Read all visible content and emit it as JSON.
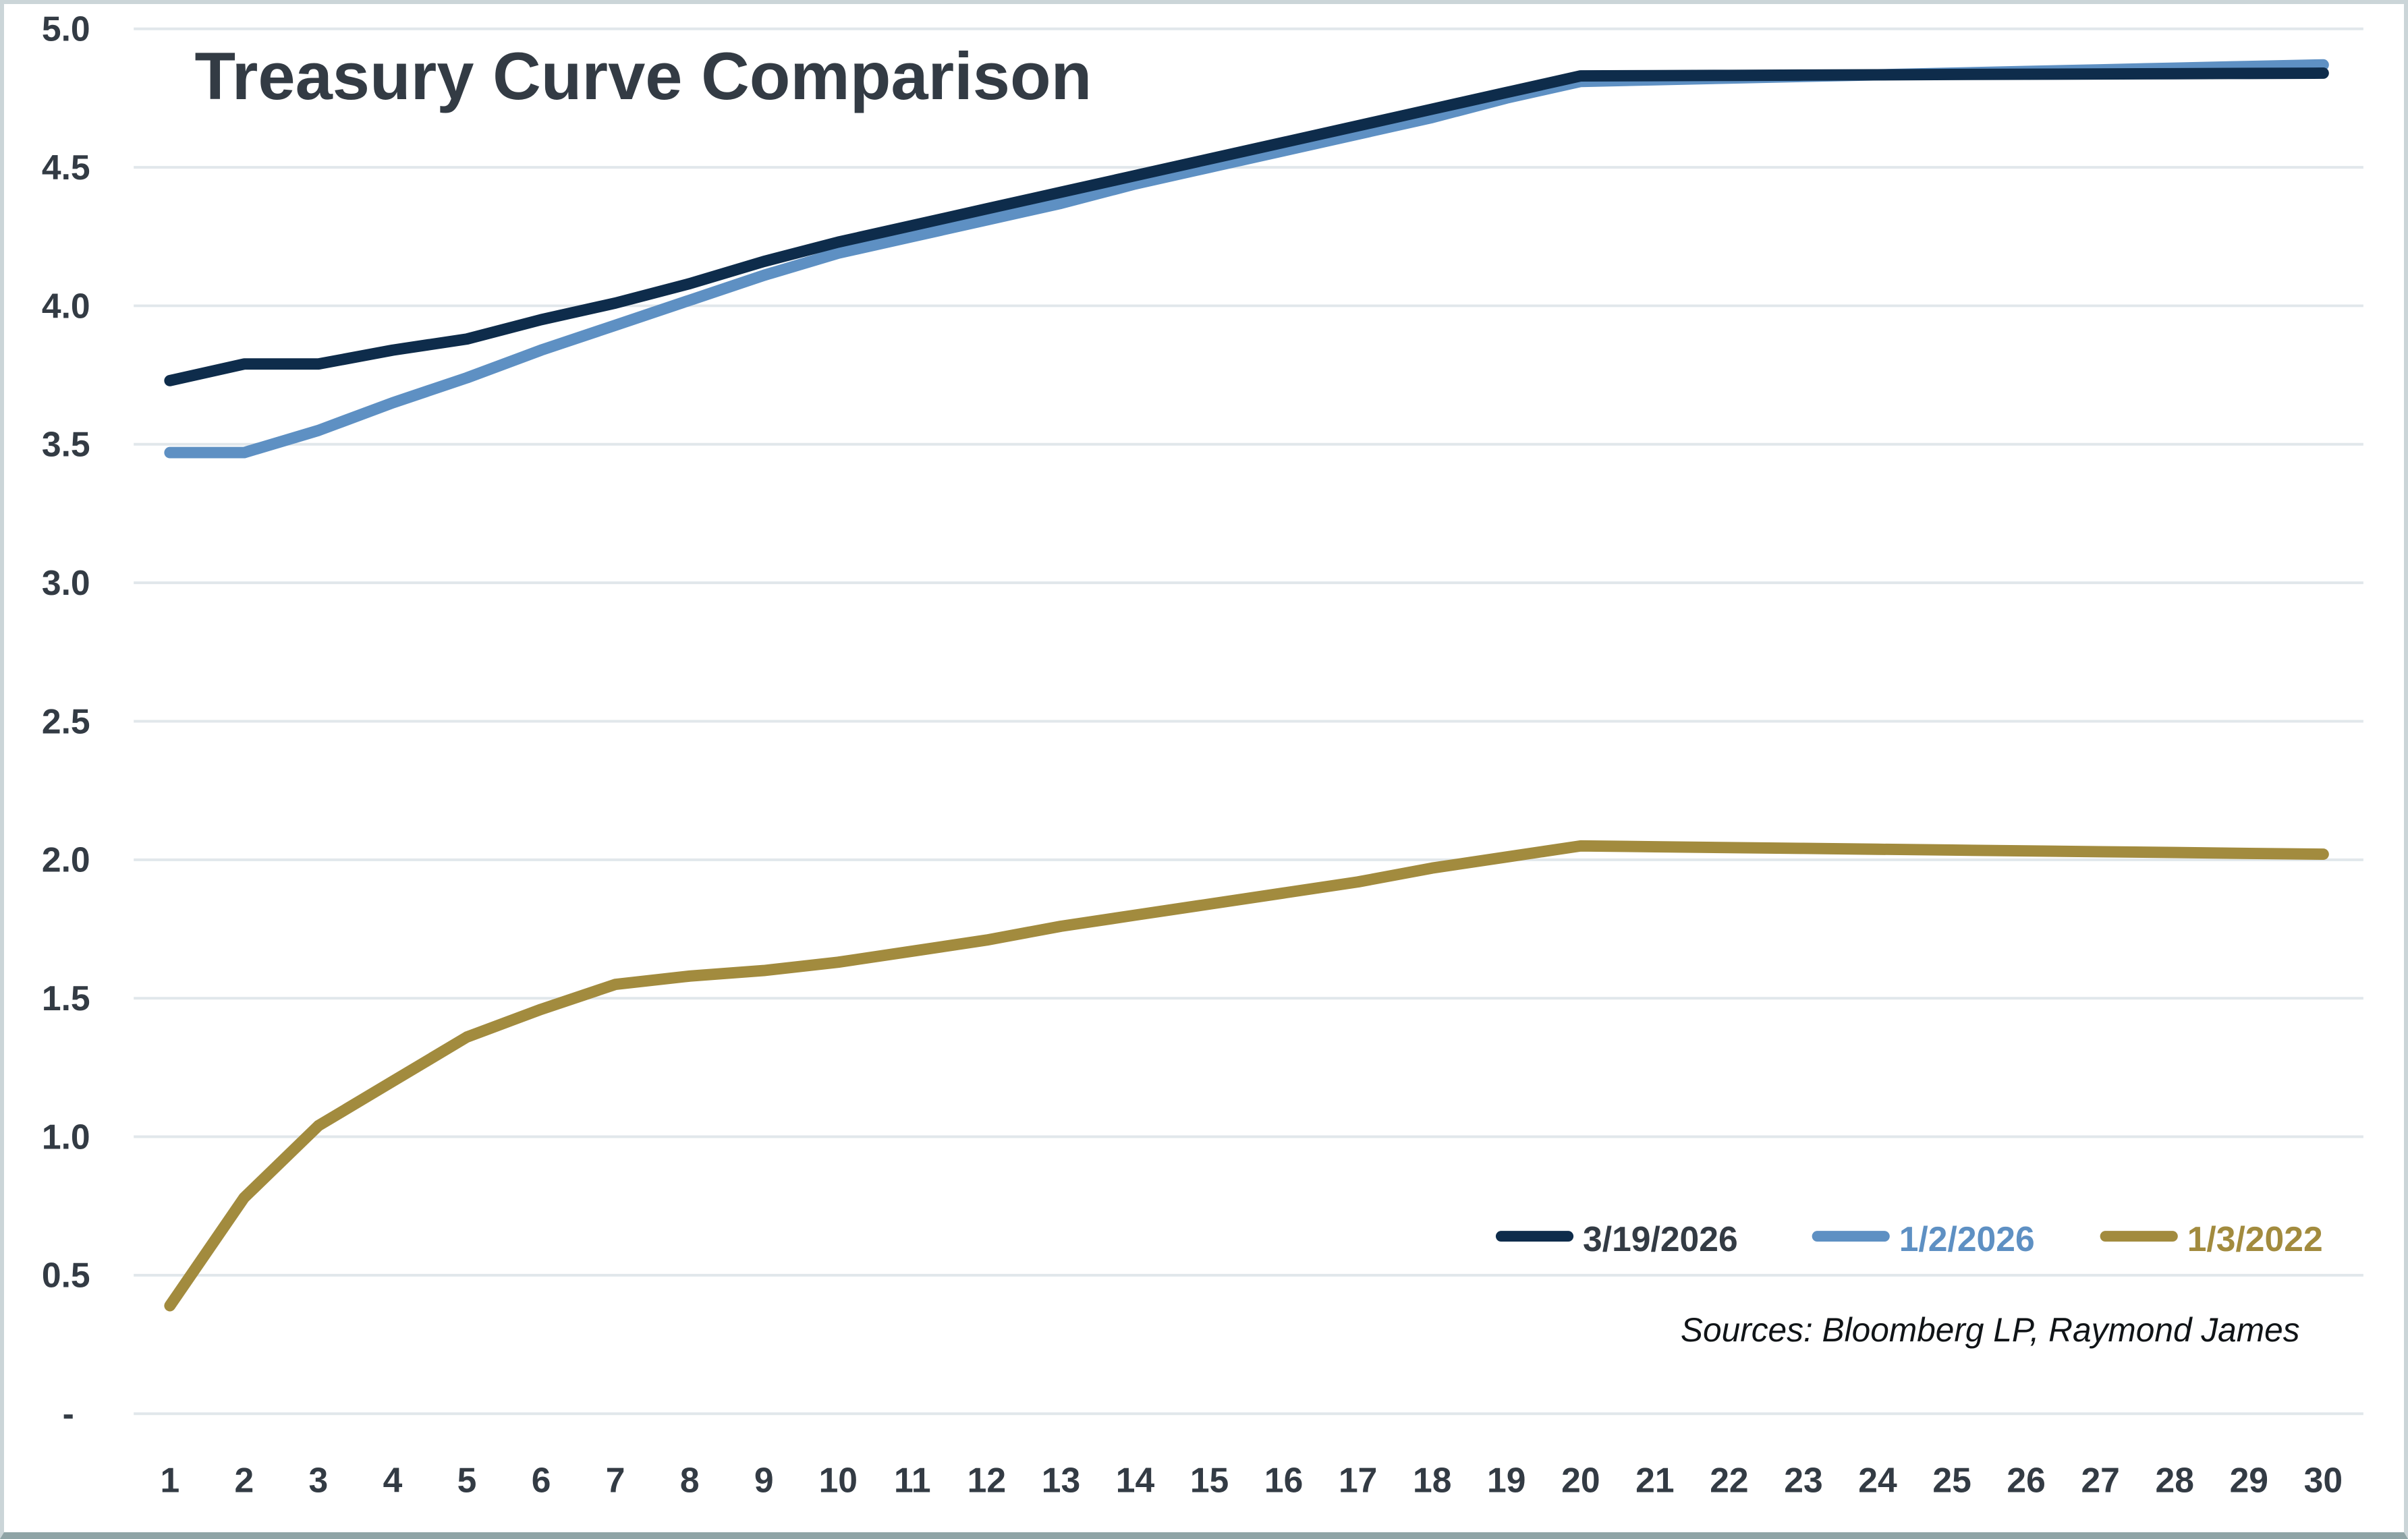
{
  "title": "Treasury Curve Comparison",
  "chart_data": {
    "type": "line",
    "title": "Treasury Curve Comparison",
    "xlabel": "",
    "ylabel": "",
    "x": [
      1,
      2,
      3,
      4,
      5,
      6,
      7,
      8,
      9,
      10,
      11,
      12,
      13,
      14,
      15,
      16,
      17,
      18,
      19,
      20,
      21,
      22,
      23,
      24,
      25,
      26,
      27,
      28,
      29,
      30
    ],
    "ylim": [
      0,
      5
    ],
    "y_ticks": [
      5.0,
      4.5,
      4.0,
      3.5,
      3.0,
      2.5,
      2.0,
      1.5,
      1.0,
      0.5,
      0.0
    ],
    "y_tick_labels": [
      "5.0",
      "4.5",
      "4.0",
      "3.5",
      "3.0",
      "2.5",
      "2.0",
      "1.5",
      "1.0",
      "0.5",
      "-"
    ],
    "grid": "horizontal",
    "legend_position": "inside-bottom-right",
    "series": [
      {
        "name": "3/19/2026",
        "color": "#0E2C4B",
        "label_color": "#333B44",
        "values": [
          3.73,
          3.79,
          3.79,
          3.84,
          3.88,
          3.95,
          4.01,
          4.08,
          4.16,
          4.23,
          4.29,
          4.35,
          4.41,
          4.47,
          4.53,
          4.59,
          4.65,
          4.71,
          4.77,
          4.83,
          4.831,
          4.832,
          4.833,
          4.834,
          4.835,
          4.836,
          4.837,
          4.838,
          4.839,
          4.84
        ]
      },
      {
        "name": "1/2/2026",
        "color": "#5E90C3",
        "label_color": "#5E90C3",
        "values": [
          3.47,
          3.47,
          3.55,
          3.65,
          3.74,
          3.84,
          3.93,
          4.02,
          4.11,
          4.19,
          4.25,
          4.31,
          4.37,
          4.44,
          4.5,
          4.56,
          4.62,
          4.68,
          4.75,
          4.81,
          4.816,
          4.822,
          4.828,
          4.834,
          4.84,
          4.846,
          4.852,
          4.858,
          4.864,
          4.87
        ]
      },
      {
        "name": "1/3/2022",
        "color": "#A28B3E",
        "label_color": "#A28B3E",
        "values": [
          0.39,
          0.78,
          1.04,
          1.2,
          1.36,
          1.46,
          1.55,
          1.58,
          1.6,
          1.63,
          1.67,
          1.71,
          1.76,
          1.8,
          1.84,
          1.88,
          1.92,
          1.97,
          2.01,
          2.05,
          2.047,
          2.044,
          2.041,
          2.038,
          2.035,
          2.032,
          2.029,
          2.026,
          2.023,
          2.02
        ]
      }
    ],
    "sources_note": "Sources: Bloomberg LP, Raymond James"
  },
  "colors": {
    "background": "#FFFFFF",
    "text": "#333B44",
    "gridline": "#E1E7EB",
    "sources_text": "#101417",
    "frame": "#CBD5D8",
    "frame_bottom": "#8FA4A6"
  }
}
